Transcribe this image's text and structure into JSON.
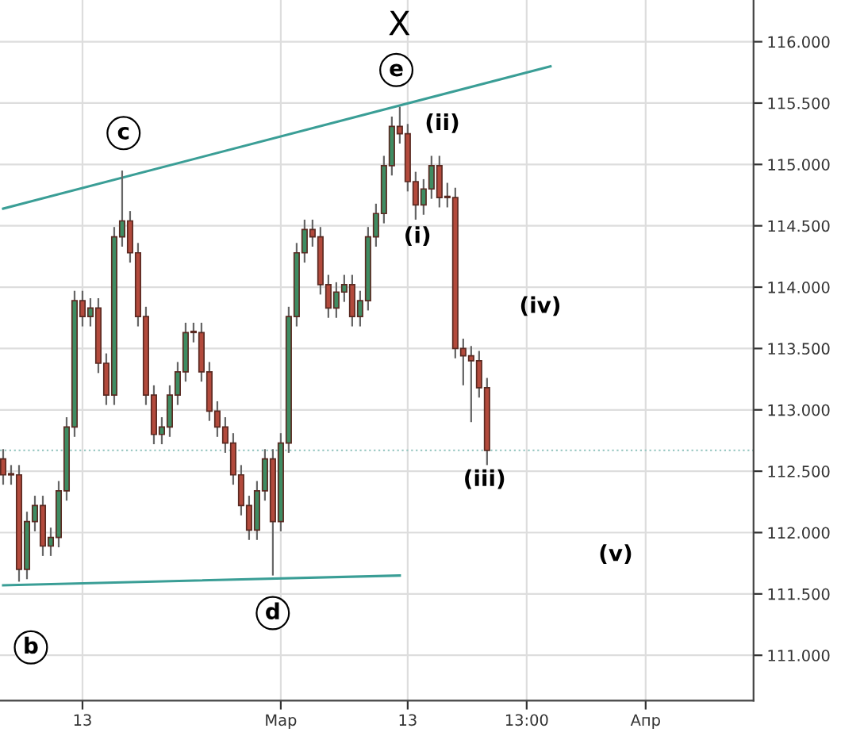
{
  "chart_data": {
    "type": "candlestick",
    "categories": [
      null,
      null,
      null,
      null,
      null,
      null,
      null,
      null,
      null,
      null,
      "13",
      null,
      null,
      null,
      null,
      null,
      null,
      null,
      null,
      null,
      null,
      null,
      null,
      null,
      null,
      null,
      null,
      null,
      null,
      null,
      null,
      null,
      null,
      null,
      null,
      "Мар",
      null,
      null,
      null,
      null,
      null,
      null,
      null,
      null,
      null,
      null,
      null,
      null,
      null,
      null,
      null,
      "13",
      null,
      null,
      null,
      null,
      null,
      null,
      null,
      null,
      null,
      null,
      null,
      null,
      null,
      null,
      "13:00",
      null,
      null,
      null,
      null,
      null,
      null,
      null,
      null,
      null,
      null,
      null,
      null,
      null,
      null,
      "Апр",
      null,
      null,
      null,
      null,
      null,
      null,
      null,
      null,
      null,
      null,
      null,
      null,
      null
    ],
    "ohlc": [
      [
        112.6,
        112.68,
        112.39,
        112.47
      ],
      [
        112.47,
        112.55,
        112.39,
        112.47
      ],
      [
        112.47,
        112.55,
        111.6,
        111.7
      ],
      [
        111.7,
        112.17,
        111.62,
        112.09
      ],
      [
        112.09,
        112.3,
        112.01,
        112.22
      ],
      [
        112.22,
        112.3,
        111.81,
        111.89
      ],
      [
        111.89,
        112.04,
        111.81,
        111.96
      ],
      [
        111.96,
        112.42,
        111.88,
        112.34
      ],
      [
        112.34,
        112.94,
        112.26,
        112.86
      ],
      [
        112.86,
        113.97,
        112.78,
        113.89
      ],
      [
        113.89,
        113.97,
        113.68,
        113.76
      ],
      [
        113.76,
        113.91,
        113.68,
        113.83
      ],
      [
        113.83,
        113.91,
        113.3,
        113.38
      ],
      [
        113.38,
        113.46,
        113.04,
        113.12
      ],
      [
        113.12,
        114.49,
        113.04,
        114.41
      ],
      [
        114.41,
        114.95,
        114.33,
        114.54
      ],
      [
        114.54,
        114.62,
        114.2,
        114.28
      ],
      [
        114.28,
        114.36,
        113.68,
        113.76
      ],
      [
        113.76,
        113.84,
        113.04,
        113.12
      ],
      [
        113.12,
        113.2,
        112.72,
        112.8
      ],
      [
        112.8,
        112.94,
        112.72,
        112.86
      ],
      [
        112.86,
        113.2,
        112.78,
        113.12
      ],
      [
        113.12,
        113.39,
        113.04,
        113.31
      ],
      [
        113.31,
        113.71,
        113.23,
        113.63
      ],
      [
        113.63,
        113.71,
        113.55,
        113.63
      ],
      [
        113.63,
        113.71,
        113.23,
        113.31
      ],
      [
        113.31,
        113.39,
        112.91,
        112.99
      ],
      [
        112.99,
        113.07,
        112.78,
        112.86
      ],
      [
        112.86,
        112.94,
        112.65,
        112.73
      ],
      [
        112.73,
        112.81,
        112.39,
        112.47
      ],
      [
        112.47,
        112.55,
        112.14,
        112.22
      ],
      [
        112.22,
        112.3,
        111.94,
        112.02
      ],
      [
        112.02,
        112.42,
        111.94,
        112.34
      ],
      [
        112.34,
        112.68,
        112.26,
        112.6
      ],
      [
        112.6,
        112.68,
        111.65,
        112.09
      ],
      [
        112.09,
        112.81,
        112.01,
        112.73
      ],
      [
        112.73,
        113.84,
        112.65,
        113.76
      ],
      [
        113.76,
        114.36,
        113.68,
        114.28
      ],
      [
        114.28,
        114.55,
        114.2,
        114.47
      ],
      [
        114.47,
        114.55,
        114.33,
        114.41
      ],
      [
        114.41,
        114.49,
        113.94,
        114.02
      ],
      [
        114.02,
        114.1,
        113.75,
        113.83
      ],
      [
        113.83,
        114.04,
        113.75,
        113.96
      ],
      [
        113.96,
        114.1,
        113.88,
        114.02
      ],
      [
        114.02,
        114.1,
        113.68,
        113.76
      ],
      [
        113.76,
        113.97,
        113.68,
        113.89
      ],
      [
        113.89,
        114.49,
        113.81,
        114.41
      ],
      [
        114.41,
        114.68,
        114.33,
        114.6
      ],
      [
        114.6,
        115.07,
        114.52,
        114.99
      ],
      [
        114.99,
        115.39,
        114.91,
        115.31
      ],
      [
        115.31,
        115.47,
        115.17,
        115.25
      ],
      [
        115.25,
        115.33,
        114.78,
        114.86
      ],
      [
        114.86,
        114.94,
        114.55,
        114.67
      ],
      [
        114.67,
        114.88,
        114.59,
        114.8
      ],
      [
        114.8,
        115.07,
        114.72,
        114.99
      ],
      [
        114.99,
        115.07,
        114.65,
        114.73
      ],
      [
        114.73,
        114.85,
        114.65,
        114.73
      ],
      [
        114.73,
        114.81,
        113.42,
        113.5
      ],
      [
        113.5,
        113.58,
        113.2,
        113.44
      ],
      [
        113.44,
        113.52,
        112.9,
        113.4
      ],
      [
        113.4,
        113.48,
        113.1,
        113.18
      ],
      [
        113.18,
        113.26,
        112.55,
        112.67
      ],
      null,
      null,
      null,
      null,
      null,
      null,
      null,
      null,
      null,
      null,
      null,
      null,
      null,
      null,
      null,
      null,
      null,
      null,
      null,
      null,
      null,
      null,
      null,
      null,
      null,
      null,
      null,
      null,
      null,
      null,
      null,
      null,
      null
    ],
    "series": [
      {
        "type": "line",
        "color": "#3a9e96",
        "values": [
          114.64,
          null,
          null,
          null,
          null,
          null,
          null,
          null,
          null,
          null,
          null,
          null,
          null,
          null,
          null,
          null,
          null,
          null,
          null,
          null,
          null,
          null,
          null,
          null,
          null,
          null,
          null,
          null,
          null,
          null,
          null,
          null,
          null,
          null,
          null,
          null,
          null,
          null,
          null,
          null,
          null,
          null,
          null,
          null,
          null,
          null,
          null,
          null,
          null,
          null,
          null,
          null,
          null,
          null,
          null,
          null,
          null,
          null,
          null,
          null,
          null,
          null,
          null,
          null,
          null,
          null,
          null,
          null,
          null,
          115.8,
          null,
          null,
          null,
          null,
          null,
          null,
          null,
          null,
          null,
          null,
          null,
          null,
          null,
          null,
          null,
          null,
          null,
          null,
          null,
          null,
          null,
          null,
          null,
          null,
          null
        ]
      },
      {
        "type": "line",
        "color": "#3a9e96",
        "values": [
          111.57,
          null,
          null,
          null,
          null,
          null,
          null,
          null,
          null,
          null,
          null,
          null,
          null,
          null,
          null,
          null,
          null,
          null,
          null,
          null,
          null,
          null,
          null,
          null,
          null,
          null,
          null,
          null,
          null,
          null,
          null,
          null,
          null,
          null,
          null,
          null,
          null,
          null,
          null,
          null,
          null,
          null,
          null,
          null,
          null,
          null,
          null,
          null,
          null,
          null,
          111.65,
          null,
          null,
          null,
          null,
          null,
          null,
          null,
          null,
          null,
          null,
          null,
          null,
          null,
          null,
          null,
          null,
          null,
          null,
          null,
          null,
          null,
          null,
          null,
          null,
          null,
          null,
          null,
          null,
          null,
          null,
          null,
          null,
          null,
          null,
          null,
          null,
          null,
          null,
          null,
          null,
          null,
          null,
          null,
          null
        ]
      }
    ],
    "ref_lines": [
      {
        "axis": "y",
        "value": 112.67,
        "color": "#9cc9c4",
        "line_style": "dotted"
      }
    ],
    "annotations": [
      "X",
      "e",
      "c",
      "d",
      "b",
      "(i)",
      "(ii)",
      "(iii)",
      "(iv)",
      "(v)"
    ],
    "ylim": [
      110.63,
      116.34
    ],
    "yticks": [
      {
        "value": 111,
        "label": "111.000"
      },
      {
        "value": 111.5,
        "label": "111.500"
      },
      {
        "value": 112,
        "label": "112.000"
      },
      {
        "value": 112.5,
        "label": "112.500"
      },
      {
        "value": 113,
        "label": "113.000"
      },
      {
        "value": 113.5,
        "label": "113.500"
      },
      {
        "value": 114,
        "label": "114.000"
      },
      {
        "value": 114.5,
        "label": "114.500"
      },
      {
        "value": 115,
        "label": "115.000"
      },
      {
        "value": 115.5,
        "label": "115.500"
      },
      {
        "value": 116,
        "label": "116.000"
      }
    ],
    "grid": true
  }
}
